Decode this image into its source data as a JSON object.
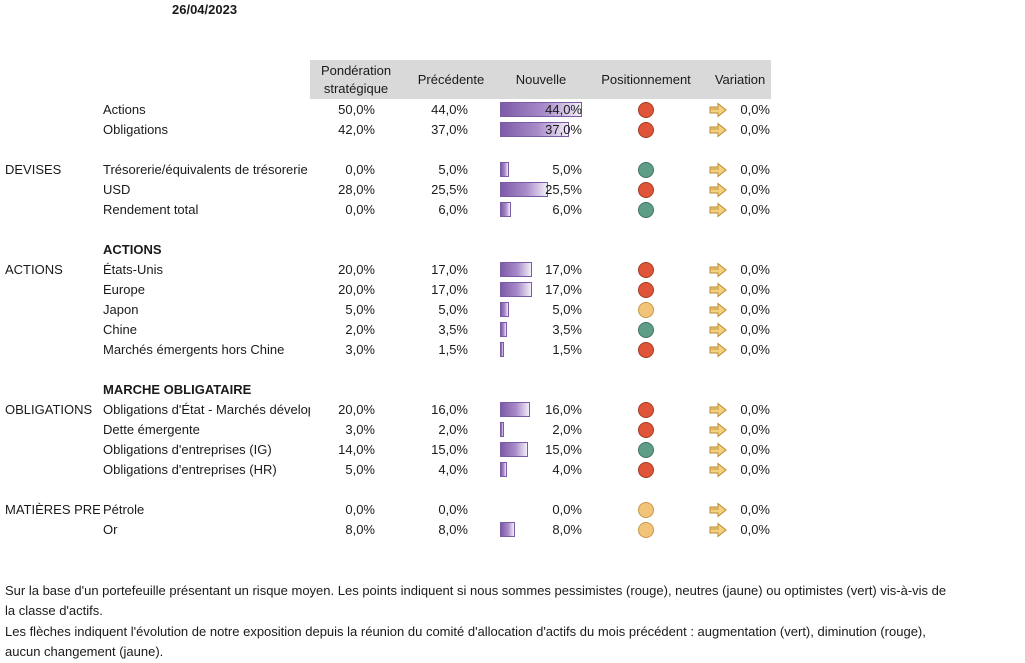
{
  "date": "26/04/2023",
  "headers": {
    "strategic": "Pondération stratégique",
    "previous": "Précédente",
    "new": "Nouvelle",
    "positioning": "Positionnement",
    "variation": "Variation"
  },
  "colors": {
    "red": "#e0553a",
    "yellow": "#f2c47a",
    "green": "#5e9e86",
    "bar": "#7d5ba8",
    "header_bg": "#d9d9d9"
  },
  "rows": [
    {
      "section": "",
      "label": "Actions",
      "strat": "50,0%",
      "prev": "44,0%",
      "new": "44,0%",
      "new_value": 44.0,
      "pos": "red",
      "arrow": "right-arrow-icon",
      "var": "0,0%"
    },
    {
      "section": "",
      "label": "Obligations",
      "strat": "42,0%",
      "prev": "37,0%",
      "new": "37,0%",
      "new_value": 37.0,
      "pos": "red",
      "arrow": "right-arrow-icon",
      "var": "0,0%"
    },
    {
      "section": "DEVISES",
      "label": "Trésorerie/équivalents de trésorerie",
      "strat": "0,0%",
      "prev": "5,0%",
      "new": "5,0%",
      "new_value": 5.0,
      "pos": "green",
      "arrow": "right-arrow-icon",
      "var": "0,0%"
    },
    {
      "section": "",
      "label": "USD",
      "strat": "28,0%",
      "prev": "25,5%",
      "new": "25,5%",
      "new_value": 25.5,
      "pos": "red",
      "arrow": "right-arrow-icon",
      "var": "0,0%"
    },
    {
      "section": "",
      "label": "Rendement total",
      "strat": "0,0%",
      "prev": "6,0%",
      "new": "6,0%",
      "new_value": 6.0,
      "pos": "green",
      "arrow": "right-arrow-icon",
      "var": "0,0%"
    },
    {
      "subheading": "ACTIONS"
    },
    {
      "section": "ACTIONS",
      "label": "États-Unis",
      "strat": "20,0%",
      "prev": "17,0%",
      "new": "17,0%",
      "new_value": 17.0,
      "pos": "red",
      "arrow": "right-arrow-icon",
      "var": "0,0%"
    },
    {
      "section": "",
      "label": "Europe",
      "strat": "20,0%",
      "prev": "17,0%",
      "new": "17,0%",
      "new_value": 17.0,
      "pos": "red",
      "arrow": "right-arrow-icon",
      "var": "0,0%"
    },
    {
      "section": "",
      "label": "Japon",
      "strat": "5,0%",
      "prev": "5,0%",
      "new": "5,0%",
      "new_value": 5.0,
      "pos": "yellow",
      "arrow": "right-arrow-icon",
      "var": "0,0%"
    },
    {
      "section": "",
      "label": "Chine",
      "strat": "2,0%",
      "prev": "3,5%",
      "new": "3,5%",
      "new_value": 3.5,
      "pos": "green",
      "arrow": "right-arrow-icon",
      "var": "0,0%"
    },
    {
      "section": "",
      "label": "Marchés émergents hors Chine",
      "strat": "3,0%",
      "prev": "1,5%",
      "new": "1,5%",
      "new_value": 1.5,
      "pos": "red",
      "arrow": "right-arrow-icon",
      "var": "0,0%"
    },
    {
      "subheading": "MARCHE OBLIGATAIRE"
    },
    {
      "section": "OBLIGATIONS",
      "label": "Obligations d'État - Marchés développés",
      "strat": "20,0%",
      "prev": "16,0%",
      "new": "16,0%",
      "new_value": 16.0,
      "pos": "red",
      "arrow": "right-arrow-icon",
      "var": "0,0%"
    },
    {
      "section": "",
      "label": "Dette émergente",
      "strat": "3,0%",
      "prev": "2,0%",
      "new": "2,0%",
      "new_value": 2.0,
      "pos": "red",
      "arrow": "right-arrow-icon",
      "var": "0,0%"
    },
    {
      "section": "",
      "label": "Obligations d'entreprises (IG)",
      "strat": "14,0%",
      "prev": "15,0%",
      "new": "15,0%",
      "new_value": 15.0,
      "pos": "green",
      "arrow": "right-arrow-icon",
      "var": "0,0%"
    },
    {
      "section": "",
      "label": "Obligations d'entreprises (HR)",
      "strat": "5,0%",
      "prev": "4,0%",
      "new": "4,0%",
      "new_value": 4.0,
      "pos": "red",
      "arrow": "right-arrow-icon",
      "var": "0,0%"
    },
    {
      "section": "MATIÈRES PREMIÈRES",
      "label": "Pétrole",
      "strat": "0,0%",
      "prev": "0,0%",
      "new": "0,0%",
      "new_value": 0.0,
      "pos": "yellow",
      "arrow": "right-arrow-icon",
      "var": "0,0%"
    },
    {
      "section": "",
      "label": "Or",
      "strat": "8,0%",
      "prev": "8,0%",
      "new": "8,0%",
      "new_value": 8.0,
      "pos": "yellow",
      "arrow": "right-arrow-icon",
      "var": "0,0%"
    }
  ],
  "footnotes": [
    "Sur la base d'un portefeuille présentant un risque moyen. Les points indiquent si nous sommes pessimistes (rouge), neutres (jaune) ou optimistes (vert) vis-à-vis de",
    "la classe d'actifs.",
    "Les flèches indiquent l'évolution de notre exposition depuis la réunion du comité d'allocation d'actifs du mois précédent : augmentation (vert), diminution (rouge),",
    "aucun changement (jaune)."
  ]
}
